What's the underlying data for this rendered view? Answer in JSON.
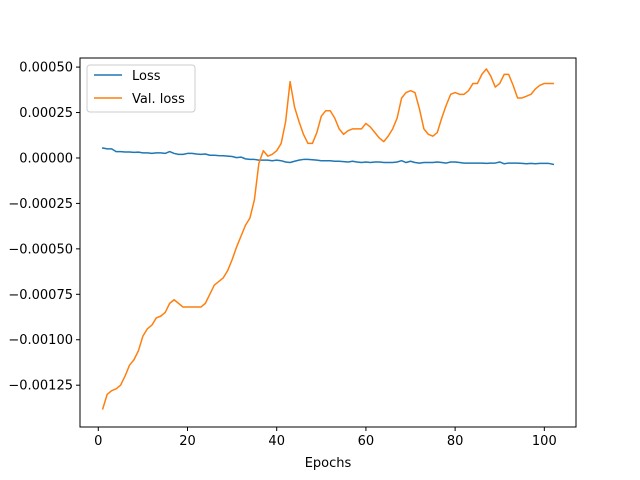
{
  "chart_data": {
    "type": "line",
    "title": "",
    "xlabel": "Epochs",
    "ylabel": "",
    "xlim": [
      -4.1,
      107.1
    ],
    "ylim": [
      -0.00148,
      0.00055
    ],
    "x_ticks": [
      {
        "value": 0,
        "label": "0"
      },
      {
        "value": 20,
        "label": "20"
      },
      {
        "value": 40,
        "label": "40"
      },
      {
        "value": 60,
        "label": "60"
      },
      {
        "value": 80,
        "label": "80"
      },
      {
        "value": 100,
        "label": "100"
      }
    ],
    "y_ticks": [
      {
        "value": 0.0005,
        "label": "0.00050"
      },
      {
        "value": 0.00025,
        "label": "0.00025"
      },
      {
        "value": 0.0,
        "label": "0.00000"
      },
      {
        "value": -0.00025,
        "label": "−0.00025"
      },
      {
        "value": -0.0005,
        "label": "−0.00050"
      },
      {
        "value": -0.00075,
        "label": "−0.00075"
      },
      {
        "value": -0.001,
        "label": "−0.00100"
      },
      {
        "value": -0.00125,
        "label": "−0.00125"
      }
    ],
    "grid": false,
    "legend_position": "top-left",
    "series": [
      {
        "name": "Loss",
        "color": "#1f77b4",
        "x": [
          1,
          2,
          3,
          4,
          5,
          6,
          7,
          8,
          9,
          10,
          11,
          12,
          13,
          14,
          15,
          16,
          17,
          18,
          19,
          20,
          21,
          22,
          23,
          24,
          25,
          26,
          27,
          28,
          29,
          30,
          31,
          32,
          33,
          34,
          35,
          36,
          37,
          38,
          39,
          40,
          41,
          42,
          43,
          44,
          45,
          46,
          47,
          48,
          49,
          50,
          51,
          52,
          53,
          54,
          55,
          56,
          57,
          58,
          59,
          60,
          61,
          62,
          63,
          64,
          65,
          66,
          67,
          68,
          69,
          70,
          71,
          72,
          73,
          74,
          75,
          76,
          77,
          78,
          79,
          80,
          81,
          82,
          83,
          84,
          85,
          86,
          87,
          88,
          89,
          90,
          91,
          92,
          93,
          94,
          95,
          96,
          97,
          98,
          99,
          100,
          101,
          102
        ],
        "y": [
          5.5e-05,
          5e-05,
          5e-05,
          3.5e-05,
          3.5e-05,
          3.3e-05,
          3.3e-05,
          3.1e-05,
          3.2e-05,
          2.8e-05,
          2.8e-05,
          2.5e-05,
          2.8e-05,
          2.8e-05,
          2.5e-05,
          3.5e-05,
          2.5e-05,
          2e-05,
          2e-05,
          2.5e-05,
          2.5e-05,
          2.2e-05,
          2e-05,
          2.2e-05,
          1.5e-05,
          1.5e-05,
          1.3e-05,
          1.2e-05,
          1e-05,
          8e-06,
          2e-06,
          5e-06,
          -5e-06,
          -8e-06,
          -8e-06,
          -1.2e-05,
          -1.2e-05,
          -1.2e-05,
          -1.5e-05,
          -1.2e-05,
          -1.5e-05,
          -2.2e-05,
          -2.5e-05,
          -1.8e-05,
          -1.2e-05,
          -8e-06,
          -8e-06,
          -1e-05,
          -1.2e-05,
          -1.5e-05,
          -1.5e-05,
          -1.5e-05,
          -1.8e-05,
          -1.8e-05,
          -2e-05,
          -2.2e-05,
          -1.8e-05,
          -2.2e-05,
          -2.5e-05,
          -2.2e-05,
          -2.5e-05,
          -2.2e-05,
          -2.2e-05,
          -2.5e-05,
          -2.5e-05,
          -2.5e-05,
          -2.2e-05,
          -1.5e-05,
          -2.5e-05,
          -1.8e-05,
          -2.5e-05,
          -2.8e-05,
          -2.5e-05,
          -2.5e-05,
          -2.5e-05,
          -2.2e-05,
          -2.5e-05,
          -2.8e-05,
          -2.2e-05,
          -2.2e-05,
          -2.5e-05,
          -2.8e-05,
          -2.8e-05,
          -2.8e-05,
          -2.8e-05,
          -2.8e-05,
          -3e-05,
          -2.8e-05,
          -2.8e-05,
          -2.2e-05,
          -3.2e-05,
          -2.8e-05,
          -2.8e-05,
          -2.8e-05,
          -3e-05,
          -3.2e-05,
          -3e-05,
          -3.2e-05,
          -3e-05,
          -3e-05,
          -3e-05,
          -3.5e-05
        ]
      },
      {
        "name": "Val. loss",
        "color": "#ff7f0e",
        "x": [
          1,
          2,
          3,
          4,
          5,
          6,
          7,
          8,
          9,
          10,
          11,
          12,
          13,
          14,
          15,
          16,
          17,
          18,
          19,
          20,
          21,
          22,
          23,
          24,
          25,
          26,
          27,
          28,
          29,
          30,
          31,
          32,
          33,
          34,
          35,
          36,
          37,
          38,
          39,
          40,
          41,
          42,
          43,
          44,
          45,
          46,
          47,
          48,
          49,
          50,
          51,
          52,
          53,
          54,
          55,
          56,
          57,
          58,
          59,
          60,
          61,
          62,
          63,
          64,
          65,
          66,
          67,
          68,
          69,
          70,
          71,
          72,
          73,
          74,
          75,
          76,
          77,
          78,
          79,
          80,
          81,
          82,
          83,
          84,
          85,
          86,
          87,
          88,
          89,
          90,
          91,
          92,
          93,
          94,
          95,
          96,
          97,
          98,
          99,
          100,
          101,
          102
        ],
        "y": [
          -0.00138,
          -0.0013,
          -0.00128,
          -0.00127,
          -0.00125,
          -0.0012,
          -0.00114,
          -0.00111,
          -0.00106,
          -0.00098,
          -0.00094,
          -0.00092,
          -0.00088,
          -0.00087,
          -0.00085,
          -0.0008,
          -0.00078,
          -0.0008,
          -0.00082,
          -0.00082,
          -0.00082,
          -0.00082,
          -0.00082,
          -0.0008,
          -0.00075,
          -0.0007,
          -0.00068,
          -0.00066,
          -0.00062,
          -0.00056,
          -0.00049,
          -0.00043,
          -0.00037,
          -0.00033,
          -0.00023,
          -3e-05,
          4e-05,
          1e-05,
          2e-05,
          4e-05,
          8e-05,
          0.0002,
          0.00042,
          0.00028,
          0.0002,
          0.00013,
          8e-05,
          8e-05,
          0.00014,
          0.00023,
          0.00026,
          0.00026,
          0.00022,
          0.00016,
          0.00013,
          0.00015,
          0.00016,
          0.00016,
          0.00016,
          0.00019,
          0.00017,
          0.00014,
          0.00011,
          9e-05,
          0.00012,
          0.00016,
          0.00022,
          0.00033,
          0.00036,
          0.00037,
          0.00036,
          0.00027,
          0.00016,
          0.00013,
          0.00012,
          0.00014,
          0.00022,
          0.00029,
          0.00035,
          0.00036,
          0.00035,
          0.00035,
          0.00037,
          0.00041,
          0.00041,
          0.00046,
          0.00049,
          0.00045,
          0.00039,
          0.00041,
          0.00046,
          0.00046,
          0.0004,
          0.00033,
          0.00033,
          0.00034,
          0.00035,
          0.00038,
          0.0004,
          0.00041,
          0.00041,
          0.00041
        ]
      }
    ]
  }
}
